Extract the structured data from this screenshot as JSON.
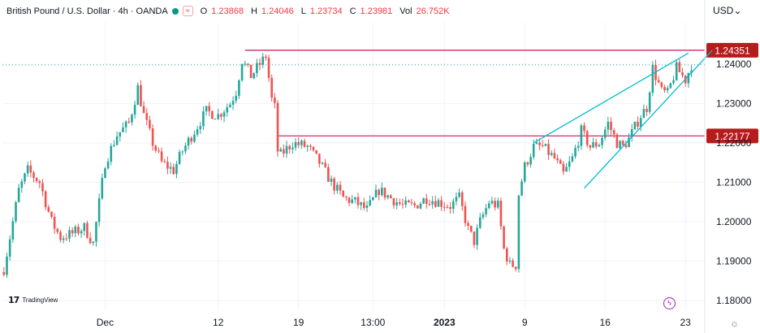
{
  "header": {
    "symbol": "British Pound / U.S. Dollar · 4h · OANDA",
    "open_label": "O",
    "open": "1.23868",
    "high_label": "H",
    "high": "1.24046",
    "low_label": "L",
    "low": "1.23734",
    "close_label": "C",
    "close": "1.23981",
    "vol_label": "Vol",
    "vol": "26.752K",
    "currency": "USD"
  },
  "colors": {
    "bull": "#26a69a",
    "bear": "#ef5350",
    "resistance": "#c2185b",
    "wedge": "#00bcd4",
    "price_line": "#26a69a",
    "grid": "#f0f3fa",
    "axis_text": "#131722"
  },
  "branding": {
    "logo": "TradingView"
  },
  "chart_data": {
    "type": "candlestick",
    "y_ticks": [
      "1.24000",
      "1.23000",
      "1.22000",
      "1.21000",
      "1.20000",
      "1.19000",
      "1.18000"
    ],
    "y_tick_values": [
      1.24,
      1.23,
      1.22,
      1.21,
      1.2,
      1.19,
      1.18
    ],
    "ylim": [
      1.1775,
      1.2505
    ],
    "x_ticks": [
      {
        "label": "Dec",
        "bar": 34,
        "bold": false
      },
      {
        "label": "12",
        "bar": 72,
        "bold": false
      },
      {
        "label": "19",
        "bar": 99,
        "bold": false
      },
      {
        "label": "13:00",
        "bar": 124,
        "bold": false
      },
      {
        "label": "2023",
        "bar": 148,
        "bold": true
      },
      {
        "label": "9",
        "bar": 175,
        "bold": false
      },
      {
        "label": "16",
        "bar": 202,
        "bold": false
      },
      {
        "label": "23",
        "bar": 229,
        "bold": false
      }
    ],
    "levels": [
      {
        "label": "1.24351",
        "value": 1.24351,
        "from_bar": 81
      },
      {
        "label": "1.22177",
        "value": 1.22177,
        "from_bar": 92
      }
    ],
    "last_price": 1.23981,
    "wedge_lines": [
      {
        "from": [
          178,
          1.22
        ],
        "to": [
          230,
          1.2428
        ]
      },
      {
        "from": [
          195,
          1.2085
        ],
        "to": [
          238,
          1.2435
        ]
      }
    ],
    "anchors": [
      [
        0,
        1.188
      ],
      [
        5,
        1.208
      ],
      [
        8,
        1.213
      ],
      [
        12,
        1.21
      ],
      [
        16,
        1.2
      ],
      [
        19,
        1.196
      ],
      [
        23,
        1.197
      ],
      [
        27,
        1.1985
      ],
      [
        30,
        1.1945
      ],
      [
        34,
        1.215
      ],
      [
        38,
        1.222
      ],
      [
        42,
        1.225
      ],
      [
        45,
        1.234
      ],
      [
        47,
        1.227
      ],
      [
        50,
        1.22
      ],
      [
        53,
        1.215
      ],
      [
        57,
        1.213
      ],
      [
        60,
        1.218
      ],
      [
        64,
        1.223
      ],
      [
        68,
        1.228
      ],
      [
        72,
        1.227
      ],
      [
        76,
        1.23
      ],
      [
        78,
        1.233
      ],
      [
        80,
        1.241
      ],
      [
        83,
        1.237
      ],
      [
        86,
        1.24
      ],
      [
        88,
        1.242
      ],
      [
        90,
        1.231
      ],
      [
        91,
        1.229
      ],
      [
        92,
        1.218
      ],
      [
        93,
        1.217
      ],
      [
        97,
        1.22
      ],
      [
        102,
        1.219
      ],
      [
        106,
        1.215
      ],
      [
        110,
        1.21
      ],
      [
        114,
        1.206
      ],
      [
        118,
        1.205
      ],
      [
        122,
        1.203
      ],
      [
        126,
        1.208
      ],
      [
        130,
        1.206
      ],
      [
        134,
        1.204
      ],
      [
        138,
        1.204
      ],
      [
        142,
        1.206
      ],
      [
        146,
        1.205
      ],
      [
        150,
        1.204
      ],
      [
        153,
        1.206
      ],
      [
        156,
        1.198
      ],
      [
        158,
        1.195
      ],
      [
        160,
        1.2
      ],
      [
        163,
        1.205
      ],
      [
        166,
        1.204
      ],
      [
        168,
        1.193
      ],
      [
        170,
        1.189
      ],
      [
        172,
        1.189
      ],
      [
        173,
        1.207
      ],
      [
        175,
        1.214
      ],
      [
        178,
        1.219
      ],
      [
        181,
        1.219
      ],
      [
        185,
        1.216
      ],
      [
        188,
        1.212
      ],
      [
        191,
        1.216
      ],
      [
        194,
        1.223
      ],
      [
        197,
        1.219
      ],
      [
        200,
        1.22
      ],
      [
        203,
        1.225
      ],
      [
        206,
        1.22
      ],
      [
        208,
        1.219
      ],
      [
        210,
        1.221
      ],
      [
        212,
        1.224
      ],
      [
        214,
        1.227
      ],
      [
        216,
        1.229
      ],
      [
        218,
        1.239
      ],
      [
        221,
        1.233
      ],
      [
        223,
        1.2325
      ],
      [
        226,
        1.239
      ],
      [
        229,
        1.236
      ],
      [
        231,
        1.2398
      ]
    ]
  }
}
